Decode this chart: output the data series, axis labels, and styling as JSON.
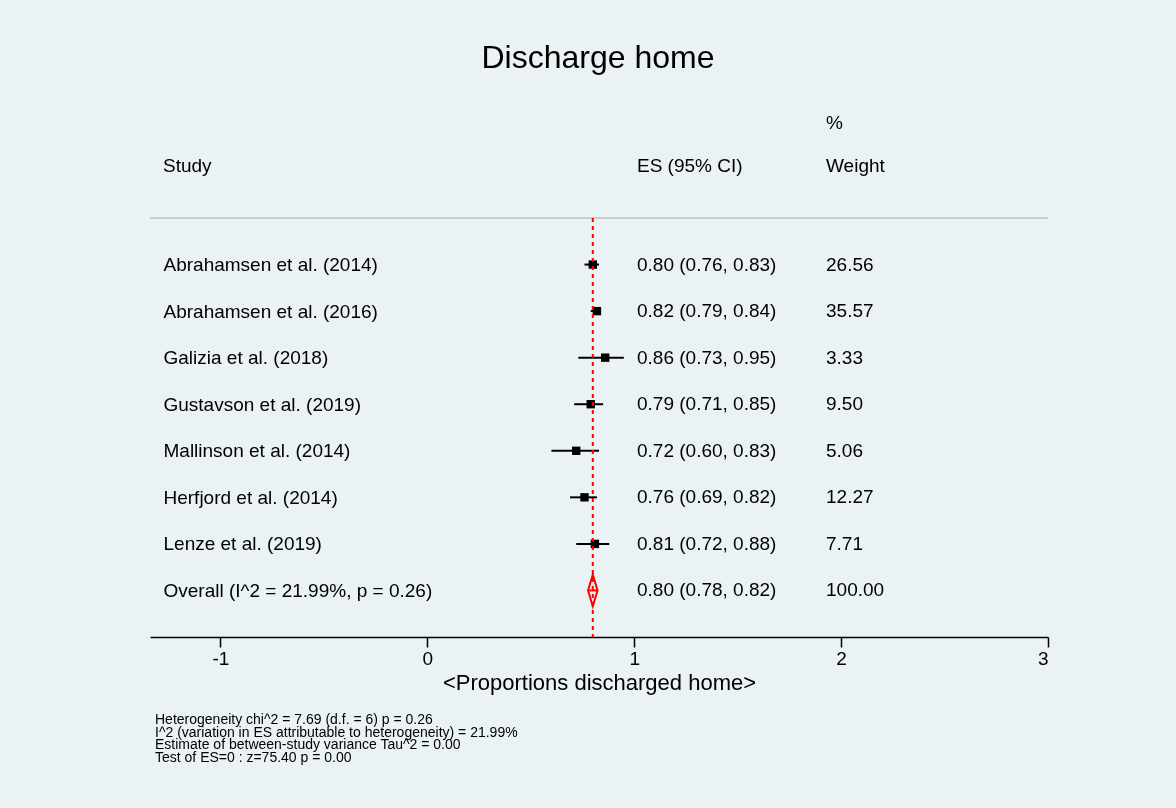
{
  "chart_data": {
    "type": "scatter",
    "title": "Discharge home",
    "xlabel": "<Proportions discharged home>",
    "categories": [
      "Abrahamsen et al. (2014)",
      "Abrahamsen et al. (2016)",
      "Galizia et al. (2018)",
      "Gustavson et al. (2019)",
      "Mallinson et al. (2014)",
      "Herfjord et al. (2014)",
      "Lenze et al. (2019)",
      "Overall  (I^2 = 21.99%, p = 0.26)"
    ],
    "orientation": "horizontal",
    "xlim": [
      -1.34,
      3
    ],
    "xticks": [
      -1,
      0,
      1,
      2,
      3
    ],
    "grid": false,
    "ref_lines": [
      {
        "axis": "x",
        "value": 0.8,
        "color": "#ff0000",
        "line_style": "dashed"
      }
    ],
    "series": [
      {
        "color": "#000000",
        "marker": "square",
        "values": [
          0.8,
          0.82,
          0.86,
          0.79,
          0.72,
          0.76,
          0.81,
          null
        ],
        "errors": [
          [
            0.76,
            0.83
          ],
          [
            0.79,
            0.84
          ],
          [
            0.73,
            0.95
          ],
          [
            0.71,
            0.85
          ],
          [
            0.6,
            0.83
          ],
          [
            0.69,
            0.82
          ],
          [
            0.72,
            0.88
          ],
          null
        ],
        "value_labels": [
          "0.80 (0.76, 0.83)",
          "0.82 (0.79, 0.84)",
          "0.86 (0.73, 0.95)",
          "0.79 (0.71, 0.85)",
          "0.72 (0.60, 0.83)",
          "0.76 (0.69, 0.82)",
          "0.81 (0.72, 0.88)",
          null
        ]
      },
      {
        "color": "#ff0000",
        "marker": "diamond",
        "values": [
          null,
          null,
          null,
          null,
          null,
          null,
          null,
          0.8
        ],
        "errors": [
          null,
          null,
          null,
          null,
          null,
          null,
          null,
          [
            0.78,
            0.82
          ]
        ],
        "value_labels": [
          null,
          null,
          null,
          null,
          null,
          null,
          null,
          "0.80 (0.78, 0.82)"
        ]
      }
    ],
    "annotations": [
      "Study",
      "ES (95% CI)",
      "%",
      "Weight",
      "Heterogeneity chi^2 = 7.69 (d.f. = 6) p = 0.26",
      "I^2 (variation in ES attributable to heterogeneity) = 21.99%",
      "Estimate of between-study variance Tau^2 = 0.00",
      "Test of ES=0 : z=75.40 p = 0.00",
      "26.56",
      "35.57",
      "3.33",
      "9.50",
      "5.06",
      "12.27",
      "7.71",
      "100.00"
    ]
  }
}
